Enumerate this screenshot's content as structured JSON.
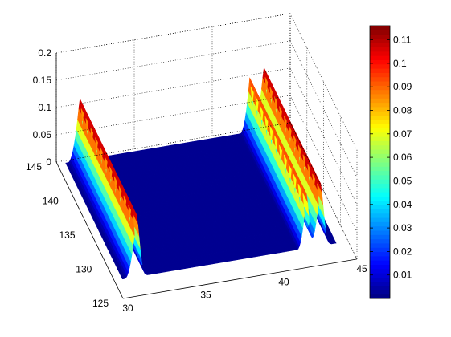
{
  "chart_data": {
    "type": "surface3d",
    "title": "",
    "xlabel": "",
    "ylabel": "",
    "zlabel": "",
    "x_ticks": [
      "30",
      "35",
      "40",
      "45"
    ],
    "y_ticks": [
      "125",
      "130",
      "135",
      "140",
      "145"
    ],
    "z_ticks": [
      "0",
      "0.05",
      "0.1",
      "0.15",
      "0.2"
    ],
    "colorbar_ticks": [
      "0.01",
      "0.02",
      "0.03",
      "0.04",
      "0.05",
      "0.06",
      "0.07",
      "0.08",
      "0.09",
      "0.1",
      "0.11"
    ],
    "xlim": [
      30,
      45
    ],
    "ylim": [
      125,
      145
    ],
    "zlim": [
      0,
      0.2
    ],
    "clim": [
      0.0,
      0.116
    ],
    "colormap": "jet",
    "grid": true,
    "colorbar": "right",
    "surface": {
      "x_start": 30.5,
      "x_end": 44.2,
      "y_start": 127.5,
      "y_end": 144.5,
      "ridges": [
        {
          "x_center": 31.4,
          "half_width": 0.25,
          "peak_z": 0.115
        },
        {
          "x_center": 43.2,
          "half_width": 0.25,
          "peak_z": 0.115
        },
        {
          "x_center": 42.3,
          "half_width": 0.2,
          "peak_z": 0.1
        }
      ],
      "base_z": 0.002
    }
  }
}
